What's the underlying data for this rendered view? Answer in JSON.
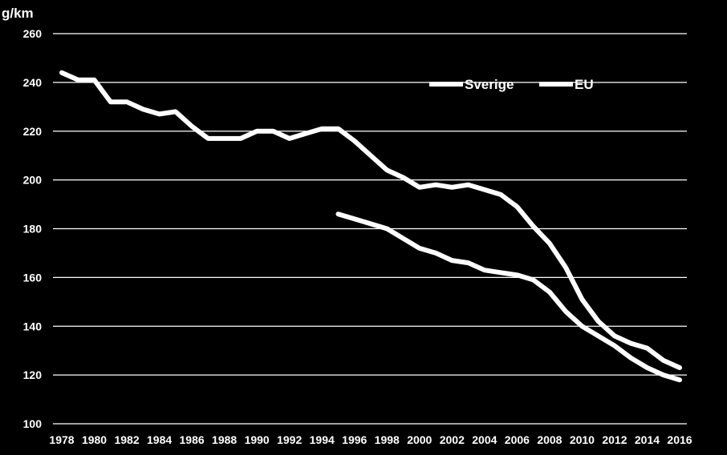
{
  "chart_data": {
    "type": "line",
    "ylabel": "g/km",
    "ylim": [
      100,
      260
    ],
    "yticks": [
      100,
      120,
      140,
      160,
      180,
      200,
      220,
      240,
      260
    ],
    "xlim": [
      1978,
      2016
    ],
    "xticks": [
      1978,
      1980,
      1982,
      1984,
      1986,
      1988,
      1990,
      1992,
      1994,
      1996,
      1998,
      2000,
      2002,
      2004,
      2006,
      2008,
      2010,
      2012,
      2014,
      2016
    ],
    "grid": true,
    "legend_position": "top-right",
    "colors": {
      "background": "#000000",
      "line": "#ffffff",
      "grid": "#ffffff"
    },
    "series": [
      {
        "name": "Sverige",
        "x": [
          1978,
          1979,
          1980,
          1981,
          1982,
          1983,
          1984,
          1985,
          1986,
          1987,
          1988,
          1989,
          1990,
          1991,
          1992,
          1993,
          1994,
          1995,
          1996,
          1997,
          1998,
          1999,
          2000,
          2001,
          2002,
          2003,
          2004,
          2005,
          2006,
          2007,
          2008,
          2009,
          2010,
          2011,
          2012,
          2013,
          2014,
          2015,
          2016
        ],
        "values": [
          244,
          241,
          241,
          232,
          232,
          229,
          227,
          228,
          222,
          217,
          217,
          217,
          220,
          220,
          217,
          219,
          221,
          221,
          216,
          210,
          204,
          201,
          197,
          198,
          197,
          198,
          196,
          194,
          189,
          181,
          174,
          164,
          151,
          142,
          136,
          133,
          131,
          126,
          123
        ]
      },
      {
        "name": "EU",
        "x": [
          1995,
          1996,
          1997,
          1998,
          1999,
          2000,
          2001,
          2002,
          2003,
          2004,
          2005,
          2006,
          2007,
          2008,
          2009,
          2010,
          2011,
          2012,
          2013,
          2014,
          2015,
          2016
        ],
        "values": [
          186,
          184,
          182,
          180,
          176,
          172,
          170,
          167,
          166,
          163,
          162,
          161,
          159,
          154,
          146,
          140,
          136,
          132,
          127,
          123,
          120,
          118
        ]
      }
    ]
  }
}
